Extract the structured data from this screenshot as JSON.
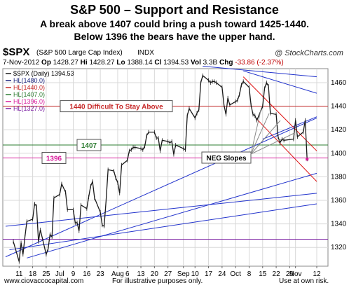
{
  "title": "S&P 500 – Support and Resistance",
  "subtitle_1": "A break above 1407 could bring a push toward 1425-1440.",
  "subtitle_2": "Below 1396 the bears have the upper hand.",
  "header": {
    "symbol": "$SPX",
    "description": "(S&P 500 Large Cap Index)",
    "exchange": "INDX",
    "source": "@ StockCharts.com",
    "quote": {
      "date": "7-Nov-2012",
      "op_label": "Op",
      "op": "1428.27",
      "hi_label": "Hi",
      "hi": "1428.27",
      "lo_label": "Lo",
      "lo": "1388.14",
      "cl_label": "Cl",
      "cl": "1394.53",
      "vol_label": "Vol",
      "vol": "3.3B",
      "chg_label": "Chg",
      "chg": "-33.86 (-2.37%)"
    }
  },
  "colors": {
    "price": "#1a1a1a",
    "hl1480": "#1a237e",
    "hl1440": "#c62828",
    "hl1407": "#2e7d32",
    "hl1396": "#d81b9b",
    "hl1327": "#7b1fa2",
    "trend_blue": "#2233cc",
    "trend_red": "#dd1111",
    "grid": "#d8d8d8"
  },
  "chart_data": {
    "type": "line",
    "series_name": "$SPX (Daily) 1394.53",
    "x": [
      "2012-06-08",
      "2012-06-11",
      "2012-06-12",
      "2012-06-13",
      "2012-06-14",
      "2012-06-15",
      "2012-06-18",
      "2012-06-19",
      "2012-06-20",
      "2012-06-21",
      "2012-06-22",
      "2012-06-25",
      "2012-06-26",
      "2012-06-27",
      "2012-06-28",
      "2012-06-29",
      "2012-07-02",
      "2012-07-03",
      "2012-07-05",
      "2012-07-06",
      "2012-07-09",
      "2012-07-10",
      "2012-07-11",
      "2012-07-12",
      "2012-07-13",
      "2012-07-16",
      "2012-07-17",
      "2012-07-18",
      "2012-07-19",
      "2012-07-20",
      "2012-07-23",
      "2012-07-24",
      "2012-07-25",
      "2012-07-26",
      "2012-07-27",
      "2012-07-30",
      "2012-07-31",
      "2012-08-01",
      "2012-08-02",
      "2012-08-03",
      "2012-08-06",
      "2012-08-07",
      "2012-08-08",
      "2012-08-09",
      "2012-08-10",
      "2012-08-13",
      "2012-08-14",
      "2012-08-15",
      "2012-08-16",
      "2012-08-17",
      "2012-08-20",
      "2012-08-21",
      "2012-08-22",
      "2012-08-23",
      "2012-08-24",
      "2012-08-27",
      "2012-08-28",
      "2012-08-29",
      "2012-08-30",
      "2012-08-31",
      "2012-09-04",
      "2012-09-05",
      "2012-09-06",
      "2012-09-07",
      "2012-09-10",
      "2012-09-11",
      "2012-09-12",
      "2012-09-13",
      "2012-09-14",
      "2012-09-17",
      "2012-09-18",
      "2012-09-19",
      "2012-09-20",
      "2012-09-21",
      "2012-09-24",
      "2012-09-25",
      "2012-09-26",
      "2012-09-27",
      "2012-09-28",
      "2012-10-01",
      "2012-10-02",
      "2012-10-03",
      "2012-10-04",
      "2012-10-05",
      "2012-10-08",
      "2012-10-09",
      "2012-10-10",
      "2012-10-11",
      "2012-10-12",
      "2012-10-15",
      "2012-10-16",
      "2012-10-17",
      "2012-10-18",
      "2012-10-19",
      "2012-10-22",
      "2012-10-23",
      "2012-10-24",
      "2012-10-25",
      "2012-10-26",
      "2012-10-31",
      "2012-11-01",
      "2012-11-02",
      "2012-11-05",
      "2012-11-06",
      "2012-11-07"
    ],
    "close": [
      1325,
      1308,
      1324,
      1314,
      1329,
      1342,
      1344,
      1357,
      1355,
      1325,
      1335,
      1314,
      1319,
      1331,
      1329,
      1362,
      1365,
      1374,
      1367,
      1352,
      1352,
      1341,
      1341,
      1334,
      1356,
      1353,
      1363,
      1372,
      1376,
      1362,
      1350,
      1339,
      1338,
      1360,
      1386,
      1385,
      1379,
      1375,
      1366,
      1390,
      1394,
      1402,
      1403,
      1405,
      1405,
      1404,
      1403,
      1406,
      1415,
      1418,
      1418,
      1413,
      1413,
      1402,
      1411,
      1410,
      1409,
      1410,
      1399,
      1407,
      1404,
      1403,
      1432,
      1438,
      1430,
      1434,
      1437,
      1460,
      1466,
      1462,
      1460,
      1461,
      1461,
      1460,
      1456,
      1441,
      1433,
      1447,
      1441,
      1444,
      1445,
      1450,
      1458,
      1461,
      1456,
      1441,
      1433,
      1432,
      1428,
      1440,
      1455,
      1460,
      1457,
      1434,
      1433,
      1414,
      1409,
      1412,
      1411,
      1412,
      1428,
      1414,
      1418,
      1428,
      1395
    ],
    "y_ticks": [
      1320,
      1340,
      1360,
      1380,
      1400,
      1420,
      1440,
      1460
    ],
    "ylim": [
      1300,
      1478
    ],
    "x_labels": [
      {
        "label": "11",
        "date": "2012-06-11"
      },
      {
        "label": "18",
        "date": "2012-06-18"
      },
      {
        "label": "25",
        "date": "2012-06-25"
      },
      {
        "label": "Jul",
        "date": "2012-07-02"
      },
      {
        "label": "9",
        "date": "2012-07-09"
      },
      {
        "label": "16",
        "date": "2012-07-16"
      },
      {
        "label": "23",
        "date": "2012-07-23"
      },
      {
        "label": "Aug",
        "date": "2012-08-01"
      },
      {
        "label": "6",
        "date": "2012-08-06"
      },
      {
        "label": "13",
        "date": "2012-08-13"
      },
      {
        "label": "20",
        "date": "2012-08-20"
      },
      {
        "label": "27",
        "date": "2012-08-27"
      },
      {
        "label": "Sep",
        "date": "2012-09-04"
      },
      {
        "label": "10",
        "date": "2012-09-10"
      },
      {
        "label": "17",
        "date": "2012-09-17"
      },
      {
        "label": "24",
        "date": "2012-09-24"
      },
      {
        "label": "Oct",
        "date": "2012-10-01"
      },
      {
        "label": "8",
        "date": "2012-10-08"
      },
      {
        "label": "15",
        "date": "2012-10-15"
      },
      {
        "label": "22",
        "date": "2012-10-22"
      },
      {
        "label": "29",
        "date": "2012-10-29"
      },
      {
        "label": "Nov",
        "date": "2012-11-01"
      },
      {
        "label": "12",
        "date": "2012-11-12"
      }
    ],
    "horizontal_levels": [
      {
        "legend": "HL(1480.0)",
        "value": 1480.0,
        "color": "#1a237e"
      },
      {
        "legend": "HL(1440.0)",
        "value": 1440.0,
        "color": "#c62828"
      },
      {
        "legend": "HL(1407.0)",
        "value": 1407.0,
        "color": "#2e7d32"
      },
      {
        "legend": "HL(1396.0)",
        "value": 1396.0,
        "color": "#d81b9b"
      },
      {
        "legend": "HL(1327.0)",
        "value": 1327.0,
        "color": "#7b1fa2"
      }
    ],
    "trendlines": [
      {
        "color": "#2233cc",
        "from": {
          "date": "2012-06-04",
          "value": 1312
        },
        "to": {
          "date": "2012-11-12",
          "value": 1430
        }
      },
      {
        "color": "#2233cc",
        "from": {
          "date": "2012-06-04",
          "value": 1338
        },
        "to": {
          "date": "2012-11-12",
          "value": 1366
        }
      },
      {
        "color": "#2233cc",
        "from": {
          "date": "2012-06-06",
          "value": 1318
        },
        "to": {
          "date": "2012-11-12",
          "value": 1357
        }
      },
      {
        "color": "#2233cc",
        "from": {
          "date": "2012-06-15",
          "value": 1311
        },
        "to": {
          "date": "2012-11-12",
          "value": 1383
        }
      },
      {
        "color": "#2233cc",
        "from": {
          "date": "2012-09-14",
          "value": 1474
        },
        "to": {
          "date": "2012-11-12",
          "value": 1465
        }
      },
      {
        "color": "#2233cc",
        "from": {
          "date": "2012-10-05",
          "value": 1470
        },
        "to": {
          "date": "2012-11-12",
          "value": 1451
        }
      },
      {
        "color": "#2233cc",
        "from": {
          "date": "2012-10-15",
          "value": 1412
        },
        "to": {
          "date": "2012-11-12",
          "value": 1431
        }
      },
      {
        "color": "#dd1111",
        "from": {
          "date": "2012-10-05",
          "value": 1465
        },
        "to": {
          "date": "2012-11-12",
          "value": 1402
        }
      },
      {
        "color": "#dd1111",
        "from": {
          "date": "2012-10-12",
          "value": 1429
        },
        "to": {
          "date": "2012-11-12",
          "value": 1376
        }
      }
    ],
    "annotations": [
      {
        "text": "1440 Difficult To Stay Above",
        "value": 1440,
        "color": "#c62828"
      },
      {
        "text": "1407",
        "value": 1407,
        "color": "#2e7d32"
      },
      {
        "text": "1396",
        "value": 1396,
        "color": "#d81b9b"
      },
      {
        "text": "NEG Slopes",
        "value": 1390,
        "color": "#000000"
      }
    ],
    "legend_position": "top-left",
    "grid": true
  },
  "footer": {
    "website": "www.ciovaccocapital.com",
    "note": "For illustrative purposes only.",
    "risk": "Use at own risk."
  }
}
